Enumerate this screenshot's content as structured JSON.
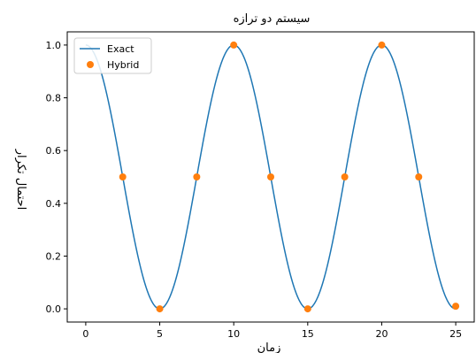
{
  "chart_data": {
    "type": "line",
    "title": "سیستم دو ترازه",
    "xlabel": "زمان",
    "ylabel": "احتمال تکرار",
    "xlim": [
      -1.25,
      26.25
    ],
    "ylim": [
      -0.05,
      1.05
    ],
    "xticks": [
      0,
      5,
      10,
      15,
      20,
      25
    ],
    "xtick_labels": [
      "0",
      "5",
      "10",
      "15",
      "20",
      "25"
    ],
    "yticks": [
      0.0,
      0.2,
      0.4,
      0.6,
      0.8,
      1.0
    ],
    "ytick_labels": [
      "0.0",
      "0.2",
      "0.4",
      "0.6",
      "0.8",
      "1.0"
    ],
    "grid": false,
    "legend_position": "top-left",
    "series": [
      {
        "name": "Exact",
        "kind": "line",
        "color": "#1f77b4",
        "function": "cos^2(pi*t/10)",
        "x_range": [
          0,
          25
        ]
      },
      {
        "name": "Hybrid",
        "kind": "scatter",
        "color": "#ff7f0e",
        "x": [
          2.5,
          5,
          7.5,
          10,
          12.5,
          15,
          17.5,
          20,
          22.5,
          25
        ],
        "y": [
          0.5,
          0.0,
          0.5,
          1.0,
          0.5,
          0.0,
          0.5,
          1.0,
          0.5,
          0.01
        ]
      }
    ]
  }
}
